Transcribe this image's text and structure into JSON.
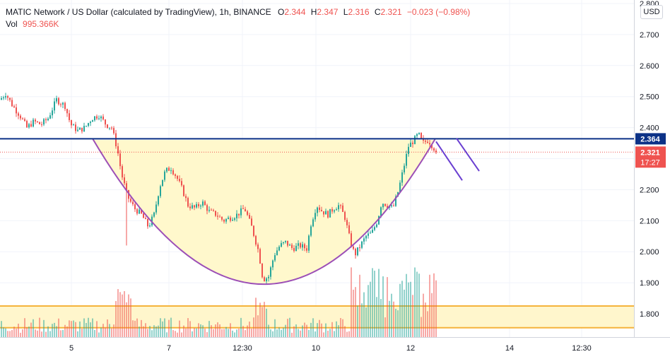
{
  "legend": {
    "title": "MATIC Network / US Dollar (calculated by TradingView), 1h, BINANCE",
    "o_label": "O",
    "o_value": "2.344",
    "h_label": "H",
    "h_value": "2.347",
    "l_label": "L",
    "l_value": "2.316",
    "c_label": "C",
    "c_value": "2.321",
    "change": "−0.023 (−0.98%)",
    "vol_label": "Vol",
    "vol_value": "995.366K"
  },
  "currency_button": "USD",
  "colors": {
    "up": "#26a69a",
    "down": "#ef5350",
    "resistance_line": "#0c3287",
    "cup_curve": "#9c4fb8",
    "cup_fill": "#fff8cc",
    "volume_zone_border": "#f5b33b",
    "volume_zone_fill": "#fff6cc"
  },
  "chart_data": {
    "type": "candlestick",
    "symbol": "MATIC/USD",
    "interval": "1h",
    "exchange": "BINANCE",
    "y_axis": {
      "ticks": [
        "2.800",
        "2.700",
        "2.600",
        "2.500",
        "2.400",
        "2.300",
        "2.200",
        "2.100",
        "2.000",
        "1.900",
        "1.800"
      ],
      "range": [
        1.74,
        2.8
      ]
    },
    "x_axis": {
      "ticks": [
        "5",
        "7",
        "12:30",
        "10",
        "12",
        "14",
        "12:30"
      ]
    },
    "price_labels": {
      "resistance": "2.364",
      "last_price": "2.321",
      "countdown": "17:27"
    },
    "resistance_level": 2.364,
    "last_price": 2.321,
    "cup_pattern": {
      "left_rim": 2.36,
      "bottom": 1.893,
      "right_rim": 2.36
    },
    "projection_lines": [
      {
        "from": 2.355,
        "to": 2.23
      },
      {
        "from": 2.365,
        "to": 2.26
      }
    ],
    "volume_zone": {
      "from": 1.755,
      "to": 1.825
    },
    "price_path": [
      [
        0,
        2.49
      ],
      [
        8,
        2.51
      ],
      [
        18,
        2.47
      ],
      [
        28,
        2.44
      ],
      [
        38,
        2.4
      ],
      [
        48,
        2.42
      ],
      [
        58,
        2.41
      ],
      [
        68,
        2.43
      ],
      [
        80,
        2.49
      ],
      [
        92,
        2.47
      ],
      [
        100,
        2.41
      ],
      [
        110,
        2.39
      ],
      [
        120,
        2.4
      ],
      [
        130,
        2.43
      ],
      [
        140,
        2.44
      ],
      [
        150,
        2.41
      ],
      [
        158,
        2.4
      ],
      [
        166,
        2.33
      ],
      [
        172,
        2.25
      ],
      [
        180,
        2.18
      ],
      [
        190,
        2.14
      ],
      [
        200,
        2.12
      ],
      [
        210,
        2.08
      ],
      [
        218,
        2.12
      ],
      [
        226,
        2.21
      ],
      [
        234,
        2.26
      ],
      [
        242,
        2.27
      ],
      [
        250,
        2.24
      ],
      [
        258,
        2.2
      ],
      [
        266,
        2.15
      ],
      [
        276,
        2.14
      ],
      [
        286,
        2.16
      ],
      [
        296,
        2.13
      ],
      [
        306,
        2.12
      ],
      [
        316,
        2.1
      ],
      [
        326,
        2.11
      ],
      [
        336,
        2.12
      ],
      [
        346,
        2.14
      ],
      [
        356,
        2.08
      ],
      [
        366,
        2.0
      ],
      [
        372,
        1.91
      ],
      [
        380,
        1.92
      ],
      [
        388,
        1.99
      ],
      [
        396,
        2.02
      ],
      [
        404,
        2.03
      ],
      [
        414,
        2.01
      ],
      [
        424,
        2.02
      ],
      [
        434,
        2.01
      ],
      [
        440,
        2.09
      ],
      [
        448,
        2.15
      ],
      [
        456,
        2.13
      ],
      [
        464,
        2.12
      ],
      [
        472,
        2.14
      ],
      [
        480,
        2.15
      ],
      [
        488,
        2.11
      ],
      [
        496,
        2.03
      ],
      [
        502,
        1.99
      ],
      [
        510,
        2.02
      ],
      [
        518,
        2.05
      ],
      [
        526,
        2.06
      ],
      [
        534,
        2.1
      ],
      [
        540,
        2.16
      ],
      [
        548,
        2.15
      ],
      [
        556,
        2.14
      ],
      [
        564,
        2.2
      ],
      [
        572,
        2.28
      ],
      [
        578,
        2.34
      ],
      [
        586,
        2.36
      ],
      [
        592,
        2.38
      ],
      [
        598,
        2.35
      ],
      [
        606,
        2.36
      ],
      [
        612,
        2.34
      ],
      [
        618,
        2.321
      ]
    ]
  }
}
